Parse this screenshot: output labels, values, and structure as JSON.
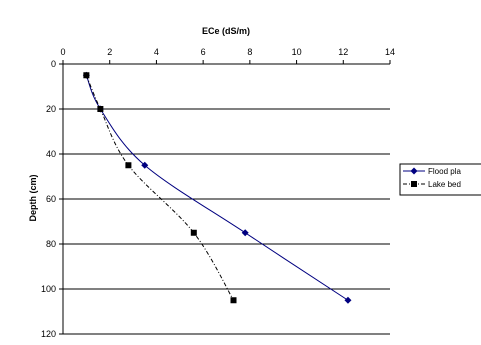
{
  "chart_data": {
    "type": "line",
    "title": "",
    "xlabel": "ECe (dS/m)",
    "ylabel": "Depth (cm)",
    "xlim": [
      0,
      14
    ],
    "ylim": [
      0,
      120
    ],
    "y_inverted": true,
    "x_axis_position": "top",
    "x_ticks": [
      0,
      2,
      4,
      6,
      8,
      10,
      12,
      14
    ],
    "y_ticks": [
      0,
      20,
      40,
      60,
      80,
      100,
      120
    ],
    "x_tick_labels": [
      "0",
      "2",
      "4",
      "6",
      "8",
      "10",
      "12",
      "14"
    ],
    "y_tick_labels": [
      "0",
      "20",
      "40",
      "60",
      "80",
      "100",
      "120"
    ],
    "grid": "horizontal major gridlines on",
    "legend_position": "right",
    "series": [
      {
        "name": "Flood plain",
        "legend_label": "Flood pla",
        "marker": "diamond",
        "line": "solid",
        "color": "#000080",
        "points": [
          {
            "x": 1.0,
            "y": 5
          },
          {
            "x": 1.6,
            "y": 20
          },
          {
            "x": 3.5,
            "y": 45
          },
          {
            "x": 7.8,
            "y": 75
          },
          {
            "x": 12.2,
            "y": 105
          }
        ]
      },
      {
        "name": "Lake bed",
        "legend_label": "Lake bed",
        "marker": "square",
        "line": "dash-dot",
        "color": "#000000",
        "points": [
          {
            "x": 1.0,
            "y": 5
          },
          {
            "x": 1.6,
            "y": 20
          },
          {
            "x": 2.8,
            "y": 45
          },
          {
            "x": 5.6,
            "y": 75
          },
          {
            "x": 7.3,
            "y": 105
          }
        ]
      }
    ]
  }
}
